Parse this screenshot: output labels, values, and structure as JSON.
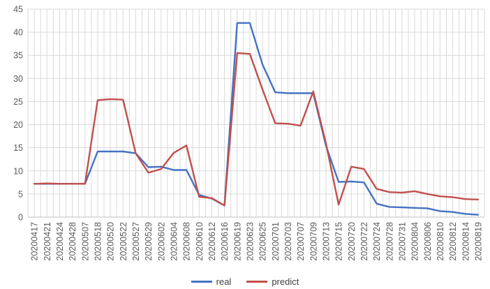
{
  "chart_data": {
    "type": "line",
    "title": "",
    "xlabel": "",
    "ylabel": "",
    "categories": [
      "20200417",
      "20200421",
      "20200424",
      "20200428",
      "20200507",
      "20200518",
      "20200520",
      "20200522",
      "20200527",
      "20200529",
      "20200602",
      "20200604",
      "20200608",
      "20200610",
      "20200612",
      "20200616",
      "20200619",
      "20200623",
      "20200625",
      "20200701",
      "20200703",
      "20200707",
      "20200709",
      "20200713",
      "20200715",
      "20200720",
      "20200722",
      "20200724",
      "20200728",
      "20200731",
      "20200804",
      "20200806",
      "20200810",
      "20200812",
      "20200814",
      "20200819"
    ],
    "series": [
      {
        "name": "real",
        "color": "#4472C4",
        "values": [
          7.2,
          7.2,
          7.2,
          7.2,
          7.2,
          14.2,
          14.2,
          14.2,
          13.8,
          10.8,
          10.9,
          10.2,
          10.2,
          4.8,
          4.0,
          2.5,
          42,
          42,
          33,
          27,
          26.8,
          26.8,
          26.8,
          15.5,
          7.6,
          7.7,
          7.5,
          2.9,
          2.2,
          2.1,
          2.0,
          1.9,
          1.3,
          1.1,
          0.7,
          0.5
        ]
      },
      {
        "name": "predict",
        "color": "#C0504D",
        "values": [
          7.2,
          7.3,
          7.2,
          7.2,
          7.2,
          25.3,
          25.5,
          25.4,
          13.8,
          9.6,
          10.4,
          13.9,
          15.5,
          4.4,
          4.1,
          2.5,
          35.5,
          35.3,
          27.6,
          20.3,
          20.2,
          19.8,
          27.2,
          16.0,
          2.7,
          10.9,
          10.4,
          6.1,
          5.4,
          5.3,
          5.6,
          5.0,
          4.5,
          4.3,
          3.9,
          3.8
        ]
      }
    ],
    "ylim": [
      0,
      45
    ],
    "yticks": [
      0,
      5,
      10,
      15,
      20,
      25,
      30,
      35,
      40,
      45
    ],
    "grid": true,
    "legend_position": "bottom",
    "colors": {
      "gridline": "#D9D9D9",
      "axis_line": "#BFBFBF",
      "tick_label": "#595959",
      "background": "#FFFFFF"
    }
  }
}
